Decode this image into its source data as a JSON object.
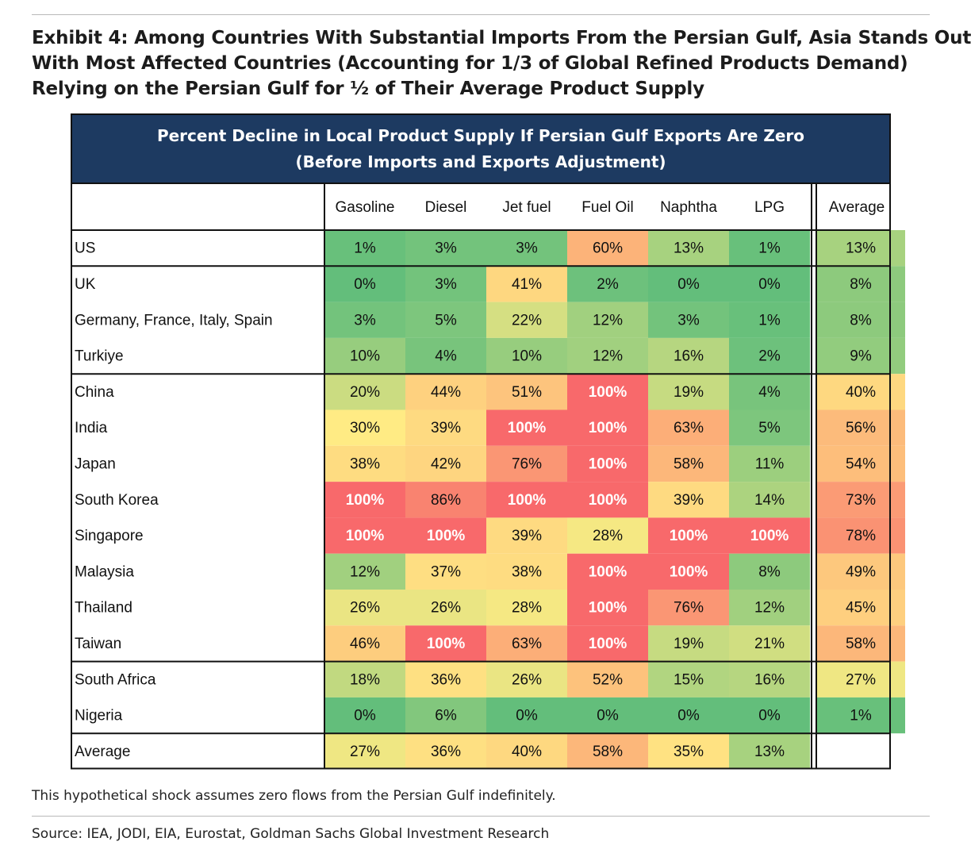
{
  "title": {
    "lines": [
      "Exhibit 4: Among Countries With Substantial Imports From the Persian Gulf, Asia Stands Out",
      "With Most Affected Countries (Accounting for 1/3 of Global Refined Products Demand)",
      "Relying on the Persian Gulf for ½ of Their Average Product Supply"
    ]
  },
  "table_header": {
    "line1": "Percent Decline in Local Product Supply If Persian Gulf Exports Are Zero",
    "line2": "(Before Imports and Exports Adjustment)"
  },
  "note": "This hypothetical shock assumes zero flows from the Persian Gulf indefinitely.",
  "source": "Source: IEA, JODI, EIA, Eurostat, Goldman Sachs Global Investment Research",
  "colors": {
    "header_band": "#1d3a61",
    "low": "#63be7b",
    "mid": "#ffeb84",
    "high": "#f8696b"
  },
  "chart_data": {
    "type": "table",
    "unit": "%",
    "columns": [
      "Gasoline",
      "Diesel",
      "Jet fuel",
      "Fuel Oil",
      "Naphtha",
      "LPG"
    ],
    "average_column_label": "Average",
    "rows": [
      {
        "label": "US",
        "values": [
          1,
          3,
          3,
          60,
          13,
          1
        ],
        "average": 13
      },
      {
        "label": "UK",
        "values": [
          0,
          3,
          41,
          2,
          0,
          0
        ],
        "average": 8
      },
      {
        "label": "Germany, France, Italy, Spain",
        "values": [
          3,
          5,
          22,
          12,
          3,
          1
        ],
        "average": 8
      },
      {
        "label": "Turkiye",
        "values": [
          10,
          4,
          10,
          12,
          16,
          2
        ],
        "average": 9
      },
      {
        "label": "China",
        "values": [
          20,
          44,
          51,
          100,
          19,
          4
        ],
        "average": 40
      },
      {
        "label": "India",
        "values": [
          30,
          39,
          100,
          100,
          63,
          5
        ],
        "average": 56
      },
      {
        "label": "Japan",
        "values": [
          38,
          42,
          76,
          100,
          58,
          11
        ],
        "average": 54
      },
      {
        "label": "South Korea",
        "values": [
          100,
          86,
          100,
          100,
          39,
          14
        ],
        "average": 73
      },
      {
        "label": "Singapore",
        "values": [
          100,
          100,
          39,
          28,
          100,
          100
        ],
        "average": 78
      },
      {
        "label": "Malaysia",
        "values": [
          12,
          37,
          38,
          100,
          100,
          8
        ],
        "average": 49
      },
      {
        "label": "Thailand",
        "values": [
          26,
          26,
          28,
          100,
          76,
          12
        ],
        "average": 45
      },
      {
        "label": "Taiwan",
        "values": [
          46,
          100,
          63,
          100,
          19,
          21
        ],
        "average": 58
      },
      {
        "label": "South Africa",
        "values": [
          18,
          36,
          26,
          52,
          15,
          16
        ],
        "average": 27
      },
      {
        "label": "Nigeria",
        "values": [
          0,
          6,
          0,
          0,
          0,
          0
        ],
        "average": 1
      }
    ],
    "average_row": {
      "label": "Average",
      "values": [
        27,
        36,
        40,
        58,
        35,
        13
      ]
    },
    "row_groups": [
      [
        "US"
      ],
      [
        "UK",
        "Germany, France, Italy, Spain",
        "Turkiye"
      ],
      [
        "China",
        "India",
        "Japan",
        "South Korea",
        "Singapore",
        "Malaysia",
        "Thailand",
        "Taiwan"
      ],
      [
        "South Africa",
        "Nigeria"
      ],
      [
        "Average"
      ]
    ]
  }
}
